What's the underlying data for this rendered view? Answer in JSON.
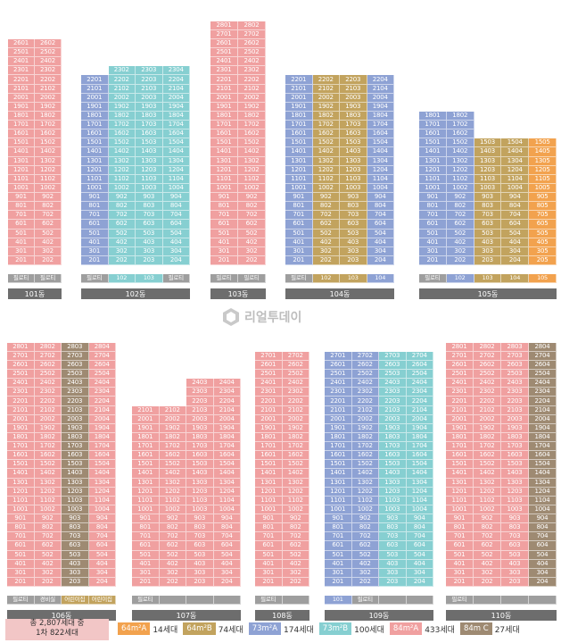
{
  "colors": {
    "pink": "#f0a0a0",
    "blue": "#8ea2d4",
    "teal": "#86cfd1",
    "orange": "#f2a24e",
    "olive": "#c2a35e",
    "brown": "#9e8a72",
    "gray": "#9e9e9e"
  },
  "piloti_label": "필로티",
  "watermark": {
    "text": "리얼투데이",
    "icon": "realtoday-logo-icon"
  },
  "buildings": [
    {
      "name": "101동",
      "top_floor": 26,
      "units": [
        1,
        2
      ],
      "types": [
        "pink",
        "pink"
      ],
      "ground": [
        "필로티",
        "필로티"
      ]
    },
    {
      "name": "102동",
      "top_floor": 23,
      "units": [
        1,
        2,
        3,
        4
      ],
      "types": [
        "blue",
        "teal",
        "teal",
        "teal"
      ],
      "ground": [
        "필로티",
        "102",
        "103",
        "필로티"
      ],
      "short": {
        "1": 22
      }
    },
    {
      "name": "103동",
      "top_floor": 28,
      "units": [
        1,
        2
      ],
      "types": [
        "pink",
        "pink"
      ],
      "ground": [
        "필로티",
        "필로티"
      ]
    },
    {
      "name": "104동",
      "top_floor": 22,
      "units": [
        1,
        2,
        3,
        4
      ],
      "types": [
        "blue",
        "olive",
        "olive",
        "blue"
      ],
      "ground": [
        "필로티",
        "102",
        "103",
        "104"
      ]
    },
    {
      "name": "105동",
      "top_floor": 18,
      "units": [
        1,
        2,
        3,
        4,
        5
      ],
      "types": [
        "blue",
        "blue",
        "olive",
        "olive",
        "orange"
      ],
      "ground": [
        "필로티",
        "102",
        "103",
        "104",
        "105"
      ],
      "short": {
        "3": 15,
        "4": 15,
        "5": 15
      }
    },
    {
      "name": "106동",
      "top_floor": 28,
      "units": [
        1,
        2,
        3,
        4
      ],
      "types": [
        "pink",
        "pink",
        "brown",
        "pink"
      ],
      "ground": [
        "필로티",
        "경비실",
        "어린이집",
        "어린이집"
      ]
    },
    {
      "name": "107동",
      "top_floor": 24,
      "units": [
        1,
        2,
        3,
        4
      ],
      "types": [
        "pink",
        "pink",
        "pink",
        "pink"
      ],
      "ground": [
        "필로티",
        "",
        "",
        ""
      ],
      "short": {
        "1": 21,
        "2": 21
      }
    },
    {
      "name": "108동",
      "top_floor": 27,
      "units": [
        1,
        2
      ],
      "types": [
        "pink",
        "pink"
      ],
      "ground": [
        "필로티",
        ""
      ]
    },
    {
      "name": "109동",
      "top_floor": 27,
      "units": [
        1,
        2,
        3,
        4
      ],
      "types": [
        "blue",
        "blue",
        "teal",
        "teal"
      ],
      "ground": [
        "101",
        "필로티",
        "",
        ""
      ]
    },
    {
      "name": "110동",
      "top_floor": 28,
      "units": [
        1,
        2,
        3,
        4
      ],
      "types": [
        "pink",
        "pink",
        "pink",
        "brown"
      ],
      "ground": [
        "필로티",
        "",
        "",
        ""
      ]
    }
  ],
  "total": {
    "line1": "총 2,807세대 중",
    "line2": "1차 822세대"
  },
  "legend": [
    {
      "label": "64m²A",
      "count": "14세대",
      "color": "#f2a24e"
    },
    {
      "label": "64m²B",
      "count": "74세대",
      "color": "#c2a35e"
    },
    {
      "label": "73m²A",
      "count": "174세대",
      "color": "#8ea2d4"
    },
    {
      "label": "73m²B",
      "count": "100세대",
      "color": "#86cfd1"
    },
    {
      "label": "84m²A",
      "count": "433세대",
      "color": "#f0a0a0"
    },
    {
      "label": "84m C",
      "count": "27세대",
      "color": "#9e8a72"
    }
  ]
}
